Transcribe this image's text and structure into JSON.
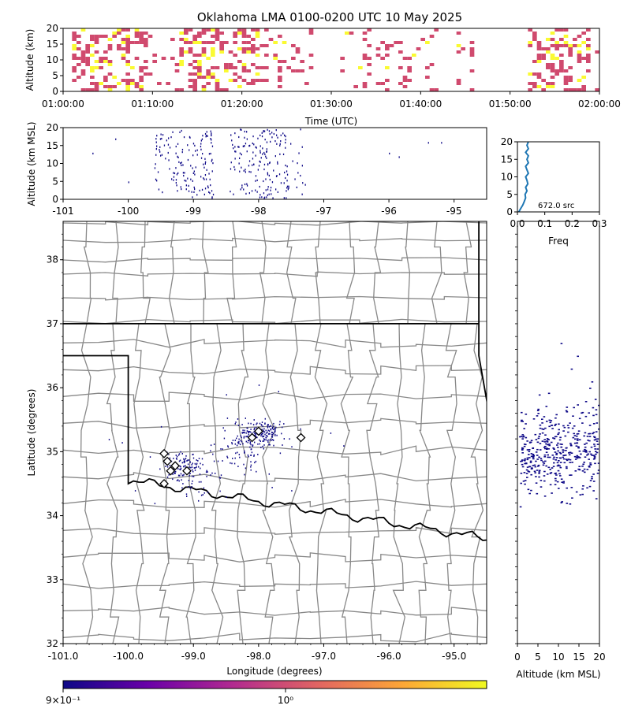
{
  "title": "Oklahoma LMA 0100-0200 UTC 10 May 2025",
  "colorbar": {
    "tick_labels": [
      "9×10⁻¹",
      "10⁰"
    ],
    "colormap": [
      "#0d0887",
      "#6a00a8",
      "#b12a90",
      "#e16462",
      "#fca636",
      "#f0f921"
    ]
  },
  "chart_data": [
    {
      "id": "time-height",
      "type": "heatmap",
      "xlabel": "Time (UTC)",
      "ylabel": "Altitude (km)",
      "xlim": [
        "01:00:00",
        "02:00:00"
      ],
      "ylim": [
        0,
        20
      ],
      "xticks": [
        "01:00:00",
        "01:10:00",
        "01:20:00",
        "01:30:00",
        "01:40:00",
        "01:50:00",
        "02:00:00"
      ],
      "yticks": [
        0,
        5,
        10,
        15,
        20
      ],
      "cell_colors": [
        "#d04a6e",
        "#fafa32"
      ],
      "active_intervals_minutes": [
        [
          0,
          28
        ],
        [
          31,
          42
        ],
        [
          44,
          46
        ],
        [
          52,
          60
        ]
      ],
      "dense_intervals_minutes": [
        [
          1,
          9
        ],
        [
          13,
          22
        ],
        [
          52,
          59
        ]
      ]
    },
    {
      "id": "lon-alt",
      "type": "scatter",
      "xlabel": "",
      "ylabel": "Altitude (km MSL)",
      "xlim": [
        -101,
        -94.5
      ],
      "ylim": [
        0,
        20
      ],
      "xticks": [
        -101,
        -100,
        -99,
        -98,
        -97,
        -96,
        -95
      ],
      "yticks": [
        0,
        5,
        10,
        15,
        20
      ],
      "point_color": "#0d0887",
      "lon_clusters": [
        [
          -99.15,
          0.35,
          150
        ],
        [
          -98.0,
          0.35,
          150
        ],
        [
          -97.6,
          0.25,
          40
        ]
      ],
      "isolated_points": [
        [
          -100.55,
          13
        ],
        [
          -100.2,
          17
        ],
        [
          -100.0,
          5
        ],
        [
          -96.0,
          13
        ],
        [
          -95.85,
          12
        ],
        [
          -95.4,
          16
        ],
        [
          -95.2,
          16
        ]
      ]
    },
    {
      "id": "alt-histogram",
      "type": "line",
      "xlabel": "Freq",
      "ylabel": "",
      "xlim": [
        0,
        0.3
      ],
      "ylim": [
        0,
        20
      ],
      "xticks": [
        "0.0",
        "0.1",
        "0.2",
        "0.3"
      ],
      "yticks": [
        0,
        5,
        10,
        15,
        20
      ],
      "annotation": "672.0 src",
      "line_color": "#1f77b4",
      "x": [
        0.005,
        0.012,
        0.02,
        0.025,
        0.03,
        0.028,
        0.035,
        0.03,
        0.038,
        0.035,
        0.03,
        0.04,
        0.035,
        0.03,
        0.04,
        0.035,
        0.04,
        0.03,
        0.04,
        0.035,
        0.04
      ],
      "y": [
        0,
        1,
        2,
        3,
        4,
        5,
        6,
        7,
        8,
        9,
        10,
        11,
        12,
        13,
        14,
        15,
        16,
        17,
        18,
        19,
        20
      ]
    },
    {
      "id": "plan-view",
      "type": "scatter",
      "xlabel": "Longitude (degrees)",
      "ylabel": "Latitude (degrees)",
      "xlim": [
        -101,
        -94.5
      ],
      "ylim": [
        32,
        38.6
      ],
      "xticks": [
        "-101.0",
        "-100.0",
        "-99.0",
        "-98.0",
        "-97.0",
        "-96.0",
        "-95.0"
      ],
      "yticks": [
        32,
        33,
        34,
        35,
        36,
        37,
        38
      ],
      "point_color": "#0d0887",
      "stations": [
        [
          -98.0,
          35.32
        ],
        [
          -98.1,
          35.22
        ],
        [
          -97.35,
          35.22
        ],
        [
          -99.45,
          34.97
        ],
        [
          -99.4,
          34.85
        ],
        [
          -99.28,
          34.78
        ],
        [
          -99.35,
          34.7
        ],
        [
          -99.1,
          34.7
        ],
        [
          -99.45,
          34.5
        ]
      ],
      "clusters": [
        [
          -97.95,
          35.3,
          0.3,
          0.15,
          140
        ],
        [
          -98.2,
          35.1,
          0.35,
          0.35,
          110
        ],
        [
          -99.2,
          34.8,
          0.25,
          0.18,
          110
        ],
        [
          -98.9,
          34.5,
          0.3,
          0.25,
          30
        ]
      ],
      "isolated_points": [
        [
          -100.3,
          35.2
        ],
        [
          -100.1,
          35.15
        ],
        [
          -99.5,
          35.4
        ],
        [
          -98.5,
          35.9
        ],
        [
          -97.7,
          35.95
        ],
        [
          -96.9,
          35.3
        ],
        [
          -96.7,
          35.1
        ],
        [
          -98.0,
          36.05
        ],
        [
          -99.6,
          34.2
        ],
        [
          -99.9,
          34.4
        ],
        [
          -97.5,
          34.4
        ],
        [
          -97.8,
          34.45
        ],
        [
          -98.5,
          34.3
        ]
      ]
    },
    {
      "id": "alt-lat",
      "type": "scatter",
      "xlabel": "Altitude (km MSL)",
      "ylabel": "",
      "xlim": [
        0,
        20
      ],
      "ylim": [
        32,
        38.6
      ],
      "xticks": [
        0,
        5,
        10,
        15,
        20
      ],
      "point_color": "#0d0887",
      "lat_center": 35.0,
      "lat_spread": 0.33,
      "count": 420
    }
  ]
}
